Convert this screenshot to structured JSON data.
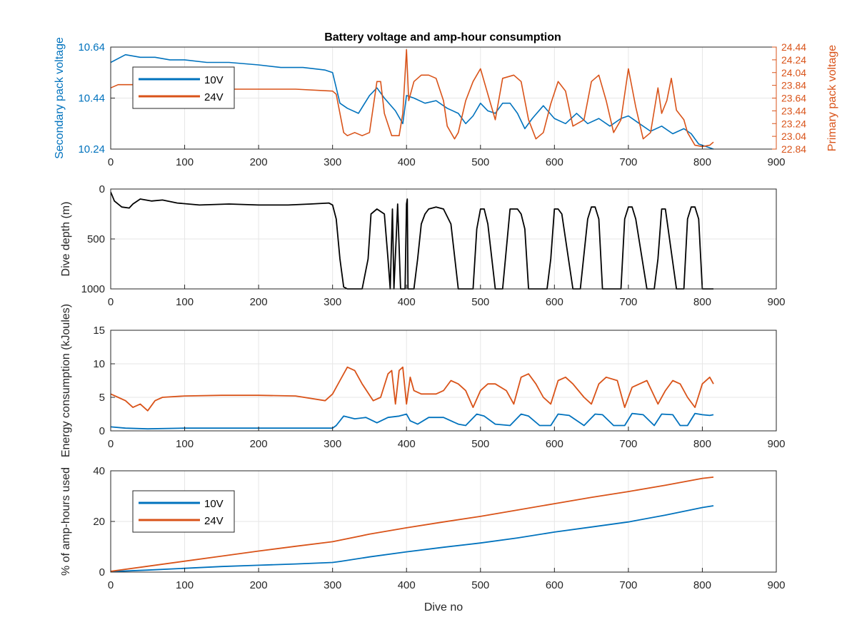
{
  "figure": {
    "title": "Battery voltage and amp-hour consumption",
    "colors": {
      "blue": "#0072BD",
      "orange": "#D95319",
      "black": "#000000",
      "grid": "#E6E6E6",
      "axis": "#262626"
    }
  },
  "chart_data": [
    {
      "type": "line",
      "title": "Battery voltage and amp-hour consumption",
      "xlabel": "",
      "ylabel_left": "Secondary pack voltage",
      "ylabel_right": "Primary pack voltage",
      "xlim": [
        0,
        900
      ],
      "ylim_left": [
        10.24,
        10.64
      ],
      "ylim_right": [
        22.84,
        24.44
      ],
      "x_ticks": [
        "0",
        "100",
        "200",
        "300",
        "400",
        "500",
        "600",
        "700",
        "800",
        "900"
      ],
      "y_ticks_left": [
        "10.24",
        "10.44",
        "10.64"
      ],
      "y_ticks_right": [
        "22.84",
        "23.04",
        "23.24",
        "23.44",
        "23.64",
        "23.84",
        "24.04",
        "24.24",
        "24.44"
      ],
      "grid": true,
      "legend": {
        "position": "top-left",
        "entries": [
          "10V",
          "24V"
        ]
      },
      "series": [
        {
          "name": "10V",
          "axis": "left",
          "color": "#0072BD",
          "x": [
            0,
            20,
            40,
            60,
            80,
            100,
            130,
            160,
            200,
            230,
            260,
            290,
            300,
            310,
            320,
            335,
            350,
            360,
            370,
            385,
            395,
            400,
            410,
            425,
            440,
            455,
            470,
            480,
            490,
            500,
            510,
            520,
            530,
            540,
            550,
            560,
            570,
            585,
            600,
            615,
            630,
            645,
            660,
            675,
            690,
            700,
            715,
            730,
            745,
            760,
            775,
            785,
            795,
            805,
            815
          ],
          "y": [
            10.58,
            10.61,
            10.6,
            10.6,
            10.59,
            10.59,
            10.58,
            10.58,
            10.57,
            10.56,
            10.56,
            10.55,
            10.54,
            10.42,
            10.4,
            10.38,
            10.45,
            10.48,
            10.44,
            10.39,
            10.34,
            10.45,
            10.44,
            10.42,
            10.43,
            10.4,
            10.38,
            10.34,
            10.37,
            10.42,
            10.39,
            10.38,
            10.42,
            10.42,
            10.38,
            10.32,
            10.36,
            10.41,
            10.36,
            10.34,
            10.38,
            10.34,
            10.36,
            10.33,
            10.36,
            10.37,
            10.34,
            10.31,
            10.33,
            10.3,
            10.32,
            10.3,
            10.26,
            10.25,
            10.24
          ]
        },
        {
          "name": "24V",
          "axis": "right",
          "color": "#D95319",
          "x": [
            0,
            10,
            30,
            60,
            100,
            150,
            200,
            250,
            300,
            305,
            315,
            320,
            330,
            340,
            350,
            360,
            365,
            370,
            380,
            390,
            395,
            400,
            403,
            410,
            420,
            430,
            440,
            450,
            455,
            465,
            470,
            480,
            490,
            500,
            510,
            520,
            530,
            545,
            555,
            565,
            575,
            585,
            595,
            605,
            615,
            625,
            640,
            650,
            660,
            670,
            680,
            690,
            700,
            710,
            720,
            730,
            740,
            745,
            752,
            758,
            765,
            775,
            780,
            790,
            800,
            810,
            815
          ],
          "y": [
            23.8,
            23.85,
            23.85,
            23.84,
            23.8,
            23.78,
            23.78,
            23.78,
            23.75,
            23.7,
            23.1,
            23.05,
            23.1,
            23.05,
            23.1,
            23.9,
            23.9,
            23.4,
            23.05,
            23.05,
            23.4,
            24.4,
            23.6,
            23.9,
            24.0,
            24.0,
            23.95,
            23.6,
            23.2,
            23.0,
            23.1,
            23.6,
            23.9,
            24.1,
            23.7,
            23.3,
            23.95,
            24.0,
            23.9,
            23.3,
            23.0,
            23.1,
            23.55,
            23.9,
            23.75,
            23.2,
            23.3,
            23.9,
            24.0,
            23.6,
            23.1,
            23.3,
            24.1,
            23.5,
            23.0,
            23.1,
            23.8,
            23.4,
            23.6,
            23.95,
            23.45,
            23.3,
            23.1,
            22.9,
            22.88,
            22.9,
            22.95
          ]
        }
      ]
    },
    {
      "type": "line",
      "xlabel": "",
      "ylabel": "Dive depth (m)",
      "xlim": [
        0,
        900
      ],
      "ylim": [
        0,
        1000
      ],
      "y_reversed": true,
      "x_ticks": [
        "0",
        "100",
        "200",
        "300",
        "400",
        "500",
        "600",
        "700",
        "800",
        "900"
      ],
      "y_ticks": [
        "0",
        "500",
        "1000"
      ],
      "grid": true,
      "series": [
        {
          "color": "#000000",
          "x": [
            0,
            5,
            15,
            25,
            30,
            40,
            55,
            70,
            90,
            120,
            160,
            200,
            240,
            270,
            295,
            300,
            305,
            310,
            315,
            320,
            340,
            348,
            352,
            360,
            370,
            375,
            378,
            381,
            383,
            386,
            388,
            392,
            395,
            398,
            400,
            401,
            402,
            403,
            405,
            410,
            415,
            420,
            425,
            430,
            440,
            450,
            460,
            470,
            475,
            490,
            495,
            500,
            505,
            510,
            520,
            525,
            530,
            540,
            550,
            555,
            560,
            565,
            575,
            590,
            595,
            600,
            605,
            610,
            625,
            630,
            635,
            645,
            650,
            655,
            660,
            665,
            680,
            690,
            695,
            700,
            705,
            710,
            725,
            730,
            735,
            740,
            745,
            750,
            765,
            770,
            775,
            780,
            785,
            790,
            795,
            800,
            810,
            815
          ],
          "y": [
            30,
            120,
            180,
            190,
            150,
            100,
            120,
            110,
            140,
            160,
            150,
            160,
            160,
            150,
            140,
            160,
            300,
            700,
            980,
            1000,
            1000,
            700,
            250,
            200,
            250,
            700,
            1000,
            200,
            1000,
            500,
            150,
            1000,
            1000,
            1000,
            150,
            100,
            1000,
            1000,
            1000,
            1000,
            700,
            350,
            250,
            200,
            180,
            200,
            350,
            1000,
            1000,
            1000,
            400,
            200,
            200,
            350,
            1000,
            1000,
            1000,
            200,
            200,
            250,
            400,
            1000,
            1000,
            1000,
            700,
            200,
            200,
            250,
            1000,
            1000,
            1000,
            300,
            180,
            180,
            300,
            1000,
            1000,
            1000,
            300,
            180,
            180,
            300,
            1000,
            1000,
            1000,
            700,
            200,
            200,
            1000,
            1000,
            1000,
            300,
            180,
            180,
            300,
            1000,
            1000,
            1000
          ]
        }
      ]
    },
    {
      "type": "line",
      "xlabel": "",
      "ylabel": "Energy consumption (kJoules)",
      "xlim": [
        0,
        900
      ],
      "ylim": [
        0,
        15
      ],
      "x_ticks": [
        "0",
        "100",
        "200",
        "300",
        "400",
        "500",
        "600",
        "700",
        "800",
        "900"
      ],
      "y_ticks": [
        "0",
        "5",
        "10",
        "15"
      ],
      "grid": true,
      "series": [
        {
          "color": "#D95319",
          "x": [
            0,
            10,
            20,
            30,
            40,
            50,
            60,
            70,
            100,
            150,
            200,
            250,
            290,
            300,
            310,
            320,
            330,
            340,
            355,
            365,
            375,
            380,
            385,
            390,
            395,
            400,
            405,
            410,
            420,
            440,
            450,
            460,
            470,
            480,
            490,
            500,
            510,
            520,
            535,
            545,
            555,
            565,
            575,
            585,
            595,
            605,
            615,
            625,
            640,
            650,
            660,
            670,
            685,
            695,
            705,
            715,
            725,
            740,
            750,
            760,
            770,
            780,
            790,
            800,
            810,
            815
          ],
          "y": [
            5.5,
            5.0,
            4.5,
            3.5,
            4.0,
            3.0,
            4.5,
            5.0,
            5.2,
            5.3,
            5.3,
            5.2,
            4.5,
            5.5,
            7.5,
            9.5,
            9.0,
            7.0,
            4.5,
            5.0,
            8.5,
            9.0,
            4.0,
            9.0,
            9.5,
            4.0,
            8.0,
            6.0,
            5.5,
            5.5,
            6.0,
            7.5,
            7.0,
            6.0,
            3.5,
            6.0,
            7.0,
            7.0,
            6.0,
            4.0,
            8.0,
            8.5,
            7.0,
            5.0,
            4.0,
            7.5,
            8.0,
            7.0,
            5.0,
            4.0,
            7.0,
            8.0,
            7.5,
            3.5,
            6.5,
            7.0,
            7.5,
            4.0,
            6.0,
            7.5,
            7.0,
            5.0,
            3.5,
            7.0,
            8.0,
            7.0
          ]
        },
        {
          "color": "#0072BD",
          "x": [
            0,
            20,
            50,
            100,
            150,
            200,
            250,
            300,
            305,
            315,
            330,
            345,
            360,
            375,
            390,
            400,
            405,
            415,
            430,
            450,
            470,
            480,
            495,
            505,
            520,
            540,
            555,
            565,
            580,
            595,
            605,
            620,
            640,
            655,
            665,
            680,
            695,
            705,
            720,
            735,
            745,
            760,
            770,
            780,
            790,
            800,
            810,
            815
          ],
          "y": [
            0.6,
            0.4,
            0.3,
            0.4,
            0.4,
            0.4,
            0.4,
            0.4,
            0.8,
            2.2,
            1.8,
            2.0,
            1.2,
            2.0,
            2.2,
            2.5,
            1.5,
            1.0,
            2.0,
            2.0,
            1.0,
            0.8,
            2.5,
            2.2,
            1.0,
            0.8,
            2.5,
            2.2,
            0.8,
            0.8,
            2.5,
            2.3,
            0.8,
            2.5,
            2.4,
            0.8,
            0.8,
            2.6,
            2.4,
            0.8,
            2.5,
            2.4,
            0.8,
            0.8,
            2.6,
            2.4,
            2.3,
            2.4
          ]
        }
      ]
    },
    {
      "type": "line",
      "xlabel": "Dive no",
      "ylabel": "% of amp-hours used",
      "xlim": [
        0,
        900
      ],
      "ylim": [
        0,
        40
      ],
      "x_ticks": [
        "0",
        "100",
        "200",
        "300",
        "400",
        "500",
        "600",
        "700",
        "800",
        "900"
      ],
      "y_ticks": [
        "0",
        "20",
        "40"
      ],
      "grid": true,
      "legend": {
        "position": "lower-left",
        "entries": [
          "10V",
          "24V"
        ]
      },
      "series": [
        {
          "name": "10V",
          "color": "#0072BD",
          "x": [
            0,
            50,
            100,
            150,
            200,
            250,
            300,
            310,
            350,
            400,
            450,
            500,
            550,
            600,
            650,
            700,
            750,
            800,
            815
          ],
          "y": [
            0.2,
            0.8,
            1.5,
            2.2,
            2.7,
            3.2,
            3.8,
            4.2,
            6.0,
            8.0,
            9.8,
            11.5,
            13.5,
            15.8,
            17.8,
            19.8,
            22.5,
            25.5,
            26.2
          ]
        },
        {
          "name": "24V",
          "color": "#D95319",
          "x": [
            0,
            50,
            100,
            150,
            200,
            250,
            300,
            350,
            400,
            450,
            500,
            550,
            600,
            650,
            700,
            750,
            800,
            815
          ],
          "y": [
            0.3,
            2.3,
            4.3,
            6.3,
            8.3,
            10.2,
            12.0,
            15.0,
            17.5,
            19.8,
            22.0,
            24.5,
            27.0,
            29.5,
            31.8,
            34.3,
            37.0,
            37.5
          ]
        }
      ]
    }
  ]
}
